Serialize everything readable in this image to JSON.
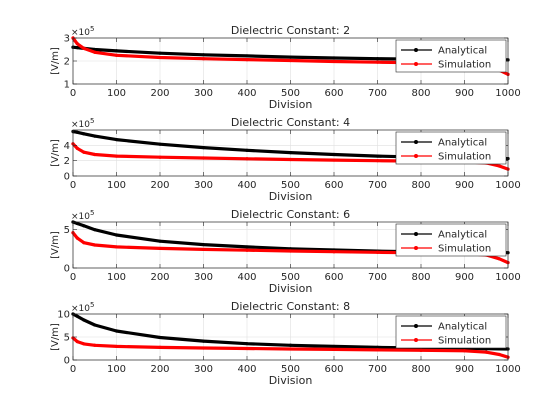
{
  "chart_data": [
    {
      "type": "line",
      "title": "Dielectric Constant: 2",
      "xlabel": "Division",
      "ylabel": "[V/m]",
      "y_exponent": "×10^5",
      "xlim": [
        0,
        1000
      ],
      "ylim": [
        1,
        3
      ],
      "xticks": [
        0,
        100,
        200,
        300,
        400,
        500,
        600,
        700,
        800,
        900,
        1000
      ],
      "yticks": [
        1,
        2,
        3
      ],
      "grid": true,
      "legend_position": "top-right",
      "x": [
        0,
        10,
        25,
        50,
        100,
        200,
        300,
        400,
        500,
        600,
        700,
        800,
        900,
        950,
        980,
        1000
      ],
      "series": [
        {
          "name": "Analytical",
          "color": "#000000",
          "values": [
            2.6,
            2.58,
            2.55,
            2.5,
            2.44,
            2.34,
            2.27,
            2.22,
            2.17,
            2.13,
            2.1,
            2.08,
            2.06,
            2.05,
            2.05,
            2.05
          ]
        },
        {
          "name": "Simulation",
          "color": "#ff0000",
          "values": [
            3.0,
            2.75,
            2.55,
            2.38,
            2.25,
            2.15,
            2.1,
            2.06,
            2.02,
            1.98,
            1.95,
            1.92,
            1.88,
            1.78,
            1.6,
            1.42
          ]
        }
      ]
    },
    {
      "type": "line",
      "title": "Dielectric Constant: 4",
      "xlabel": "Division",
      "ylabel": "[V/m]",
      "y_exponent": "×10^5",
      "xlim": [
        0,
        1000
      ],
      "ylim": [
        0,
        6
      ],
      "xticks": [
        0,
        100,
        200,
        300,
        400,
        500,
        600,
        700,
        800,
        900,
        1000
      ],
      "yticks": [
        0,
        2,
        4
      ],
      "grid": true,
      "legend_position": "top-right",
      "x": [
        0,
        10,
        25,
        50,
        100,
        200,
        300,
        400,
        500,
        600,
        700,
        800,
        900,
        950,
        980,
        1000
      ],
      "series": [
        {
          "name": "Analytical",
          "color": "#000000",
          "values": [
            5.8,
            5.7,
            5.5,
            5.2,
            4.75,
            4.15,
            3.7,
            3.35,
            3.05,
            2.8,
            2.6,
            2.45,
            2.35,
            2.3,
            2.28,
            2.27
          ]
        },
        {
          "name": "Simulation",
          "color": "#ff0000",
          "values": [
            4.2,
            3.6,
            3.1,
            2.8,
            2.6,
            2.45,
            2.35,
            2.25,
            2.15,
            2.08,
            2.0,
            1.95,
            1.85,
            1.7,
            1.3,
            0.9
          ]
        }
      ]
    },
    {
      "type": "line",
      "title": "Dielectric Constant: 6",
      "xlabel": "Division",
      "ylabel": "[V/m]",
      "y_exponent": "×10^5",
      "xlim": [
        0,
        1000
      ],
      "ylim": [
        0,
        6
      ],
      "xticks": [
        0,
        100,
        200,
        300,
        400,
        500,
        600,
        700,
        800,
        900,
        1000
      ],
      "yticks": [
        0,
        5
      ],
      "grid": true,
      "legend_position": "top-right",
      "x": [
        0,
        10,
        25,
        50,
        100,
        200,
        300,
        400,
        500,
        600,
        700,
        800,
        900,
        950,
        980,
        1000
      ],
      "series": [
        {
          "name": "Analytical",
          "color": "#000000",
          "values": [
            6.0,
            5.8,
            5.5,
            5.0,
            4.3,
            3.5,
            3.05,
            2.75,
            2.5,
            2.35,
            2.2,
            2.1,
            2.05,
            2.03,
            2.02,
            2.0
          ]
        },
        {
          "name": "Simulation",
          "color": "#ff0000",
          "values": [
            4.6,
            3.9,
            3.3,
            3.0,
            2.75,
            2.55,
            2.42,
            2.32,
            2.22,
            2.12,
            2.05,
            1.98,
            1.9,
            1.7,
            1.2,
            0.7
          ]
        }
      ]
    },
    {
      "type": "line",
      "title": "Dielectric Constant: 8",
      "xlabel": "Division",
      "ylabel": "[V/m]",
      "y_exponent": "×10^5",
      "xlim": [
        0,
        1000
      ],
      "ylim": [
        0,
        10
      ],
      "xticks": [
        0,
        100,
        200,
        300,
        400,
        500,
        600,
        700,
        800,
        900,
        1000
      ],
      "yticks": [
        0,
        5,
        10
      ],
      "grid": true,
      "legend_position": "top-right",
      "x": [
        0,
        10,
        25,
        50,
        100,
        200,
        300,
        400,
        500,
        600,
        700,
        800,
        900,
        950,
        980,
        1000
      ],
      "series": [
        {
          "name": "Analytical",
          "color": "#000000",
          "values": [
            10.0,
            9.5,
            8.7,
            7.6,
            6.3,
            4.9,
            4.1,
            3.55,
            3.2,
            2.95,
            2.75,
            2.6,
            2.5,
            2.45,
            2.42,
            2.4
          ]
        },
        {
          "name": "Simulation",
          "color": "#ff0000",
          "values": [
            4.8,
            4.0,
            3.5,
            3.2,
            2.95,
            2.75,
            2.6,
            2.5,
            2.4,
            2.3,
            2.2,
            2.1,
            2.0,
            1.7,
            1.2,
            0.6
          ]
        }
      ]
    }
  ]
}
